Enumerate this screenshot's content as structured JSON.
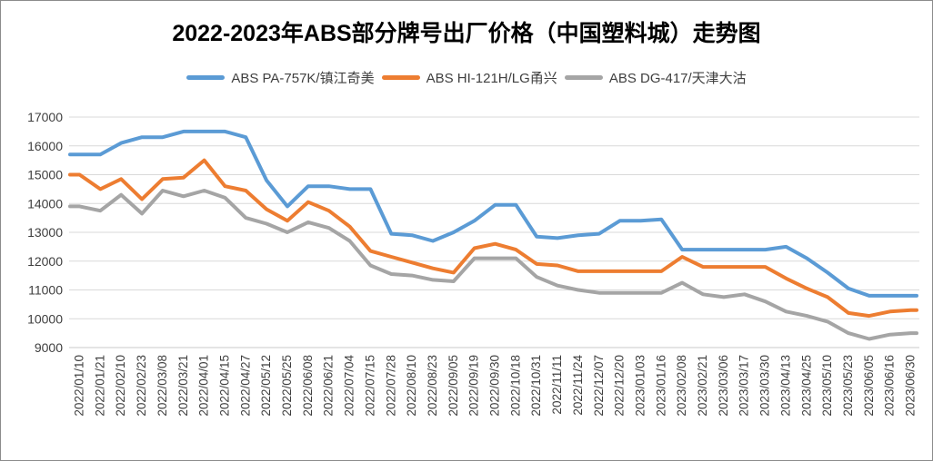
{
  "window": {
    "kind": "excel-style line chart image",
    "background": "#ffffff",
    "border_color": "#8c8c8c"
  },
  "colors": {
    "series_blue": "#5B9BD5",
    "series_orange": "#ED7D31",
    "series_gray": "#A5A5A5",
    "gridline": "#D9D9D9",
    "axis_line": "#C9C9C9",
    "axis_text": "#3f3f3f",
    "title_text": "#000000"
  },
  "chart_data": {
    "type": "line",
    "title": "2022-2023年ABS部分牌号出厂价格（中国塑料城）走势图",
    "xlabel": "",
    "ylabel": "",
    "ylim": [
      9000,
      17000
    ],
    "ytick_step": 1000,
    "grid": true,
    "legend_position": "top",
    "x_labels_rotation_deg": -90,
    "categories": [
      "2022/01/10",
      "2022/01/21",
      "2022/02/10",
      "2022/02/23",
      "2022/03/08",
      "2022/03/21",
      "2022/04/01",
      "2022/04/15",
      "2022/04/27",
      "2022/05/12",
      "2022/05/25",
      "2022/06/08",
      "2022/06/21",
      "2022/07/04",
      "2022/07/15",
      "2022/07/28",
      "2022/08/10",
      "2022/08/23",
      "2022/09/05",
      "2022/09/19",
      "2022/09/30",
      "2022/10/18",
      "2022/10/31",
      "2022/11/11",
      "2022/11/24",
      "2022/12/07",
      "2022/12/20",
      "2023/01/03",
      "2023/01/16",
      "2023/02/08",
      "2023/02/21",
      "2023/03/06",
      "2023/03/17",
      "2023/03/30",
      "2023/04/13",
      "2023/04/25",
      "2023/05/10",
      "2023/05/23",
      "2023/06/05",
      "2023/06/16",
      "2023/06/30"
    ],
    "series": [
      {
        "name": "ABS PA-757K/镇江奇美",
        "color": "#5B9BD5",
        "values": [
          15700,
          15700,
          16100,
          16300,
          16300,
          16500,
          16500,
          16500,
          16300,
          14800,
          13900,
          14600,
          14600,
          14500,
          14500,
          12950,
          12900,
          12700,
          13000,
          13400,
          13950,
          13950,
          12850,
          12800,
          12900,
          12950,
          13400,
          13400,
          13450,
          12400,
          12400,
          12400,
          12400,
          12400,
          12500,
          12100,
          11600,
          11050,
          10800,
          10800,
          10800
        ]
      },
      {
        "name": "ABS HI-121H/LG甬兴",
        "color": "#ED7D31",
        "values": [
          15000,
          14500,
          14850,
          14150,
          14850,
          14900,
          15500,
          14600,
          14450,
          13800,
          13400,
          14050,
          13750,
          13200,
          12350,
          12150,
          11950,
          11750,
          11600,
          12450,
          12600,
          12400,
          11900,
          11850,
          11650,
          11650,
          11650,
          11650,
          11650,
          12150,
          11800,
          11800,
          11800,
          11800,
          11400,
          11050,
          10750,
          10200,
          10100,
          10250,
          10300
        ]
      },
      {
        "name": "ABS DG-417/天津大沽",
        "color": "#A5A5A5",
        "values": [
          13900,
          13750,
          14300,
          13650,
          14450,
          14250,
          14450,
          14200,
          13500,
          13300,
          13000,
          13350,
          13150,
          12700,
          11850,
          11550,
          11500,
          11350,
          11300,
          12100,
          12100,
          12100,
          11450,
          11150,
          11000,
          10900,
          10900,
          10900,
          10900,
          11250,
          10850,
          10750,
          10850,
          10600,
          10250,
          10100,
          9900,
          9500,
          9300,
          9450,
          9500
        ]
      }
    ]
  }
}
